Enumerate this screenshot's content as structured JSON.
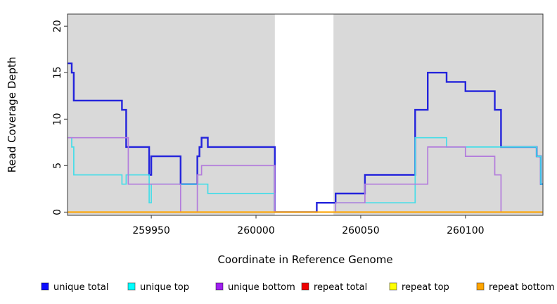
{
  "chart_data": {
    "type": "line",
    "subtype": "step-coverage-plot",
    "title": "",
    "xlabel": "Coordinate in Reference Genome",
    "ylabel": "Read Coverage Depth",
    "xlim": [
      259910,
      260137
    ],
    "ylim": [
      -0.35,
      21.3
    ],
    "x_ticks": [
      259950,
      260000,
      260050,
      260100
    ],
    "y_ticks": [
      0,
      5,
      10,
      15,
      20
    ],
    "grid": false,
    "legend_position": "bottom",
    "plot_background": "#d9d9d9",
    "highlight_region": {
      "x_start": 260009,
      "x_end": 260037,
      "color": "#ffffff"
    },
    "series": [
      {
        "name": "unique total",
        "color": "#2424dc",
        "legend_color": "#0d0dff",
        "width": 2.4,
        "steps": [
          [
            259910,
            16
          ],
          [
            259912,
            15
          ],
          [
            259913,
            12
          ],
          [
            259936,
            11
          ],
          [
            259938,
            7
          ],
          [
            259949,
            4
          ],
          [
            259950,
            6
          ],
          [
            259964,
            3
          ],
          [
            259972,
            6
          ],
          [
            259973,
            7
          ],
          [
            259974,
            8
          ],
          [
            259977,
            7
          ],
          [
            260009,
            0
          ],
          [
            260029,
            1
          ],
          [
            260038,
            2
          ],
          [
            260052,
            4
          ],
          [
            260076,
            11
          ],
          [
            260082,
            15
          ],
          [
            260091,
            14
          ],
          [
            260100,
            13
          ],
          [
            260114,
            11
          ],
          [
            260117,
            7
          ],
          [
            260134,
            6
          ],
          [
            260136,
            3
          ]
        ]
      },
      {
        "name": "unique top",
        "color": "#46dde8",
        "legend_color": "#00ffff",
        "width": 1.7,
        "steps": [
          [
            259910,
            8
          ],
          [
            259912,
            7
          ],
          [
            259913,
            4
          ],
          [
            259936,
            3
          ],
          [
            259938,
            4
          ],
          [
            259949,
            1
          ],
          [
            259950,
            3
          ],
          [
            259977,
            2
          ],
          [
            260009,
            0
          ],
          [
            260038,
            1
          ],
          [
            260076,
            8
          ],
          [
            260091,
            7
          ],
          [
            260134,
            6
          ],
          [
            260136,
            3
          ]
        ]
      },
      {
        "name": "unique bottom",
        "color": "#b37cdc",
        "legend_color": "#a020f0",
        "width": 1.7,
        "steps": [
          [
            259910,
            8
          ],
          [
            259939,
            3
          ],
          [
            259964,
            0
          ],
          [
            259972,
            4
          ],
          [
            259974,
            5
          ],
          [
            260009,
            0
          ],
          [
            260038,
            1
          ],
          [
            260052,
            3
          ],
          [
            260082,
            7
          ],
          [
            260100,
            6
          ],
          [
            260114,
            4
          ],
          [
            260117,
            0
          ]
        ]
      },
      {
        "name": "repeat total",
        "color": "#d40000",
        "legend_color": "#ee0000",
        "width": 1.5,
        "steps": [
          [
            259910,
            0
          ]
        ]
      },
      {
        "name": "repeat top",
        "color": "#f0f000",
        "legend_color": "#ffff00",
        "width": 1.5,
        "steps": [
          [
            259910,
            0
          ]
        ]
      },
      {
        "name": "repeat bottom",
        "color": "#ffa500",
        "legend_color": "#ffa500",
        "width": 2.0,
        "steps": [
          [
            259910,
            0
          ]
        ]
      }
    ]
  }
}
